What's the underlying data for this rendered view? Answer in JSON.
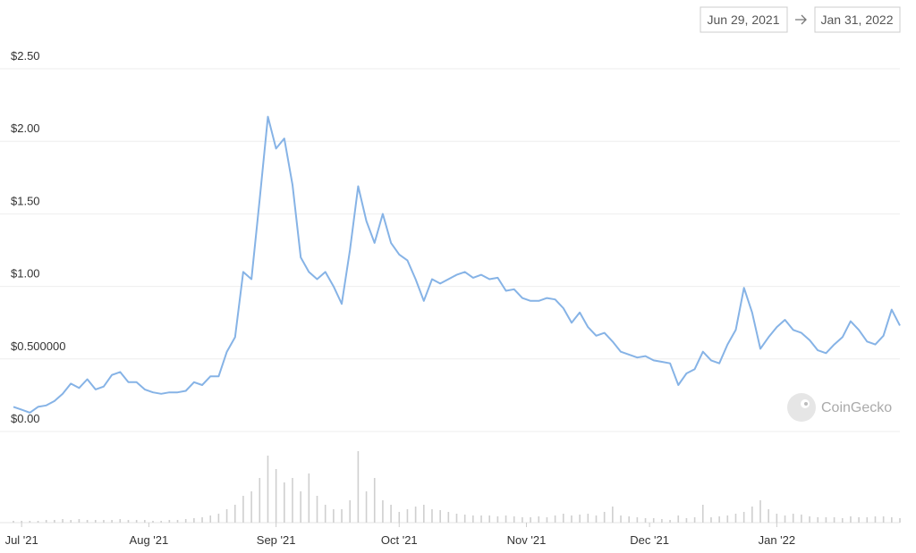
{
  "chart_data": {
    "type": "line",
    "range": {
      "start": "Jun 29, 2021",
      "end": "Jan 31, 2022"
    },
    "watermark": "CoinGecko",
    "color": "#86b3e6",
    "volume_color": "#cfcfcf",
    "grid": true,
    "xlim": [
      0,
      216
    ],
    "xticks": [
      {
        "value": 2,
        "label": "Jul '21"
      },
      {
        "value": 33,
        "label": "Aug '21"
      },
      {
        "value": 64,
        "label": "Sep '21"
      },
      {
        "value": 94,
        "label": "Oct '21"
      },
      {
        "value": 125,
        "label": "Nov '21"
      },
      {
        "value": 155,
        "label": "Dec '21"
      },
      {
        "value": 186,
        "label": "Jan '22"
      }
    ],
    "ylim": [
      0,
      2.5
    ],
    "yticks": [
      {
        "value": 0,
        "label": "$0.00"
      },
      {
        "value": 0.5,
        "label": "$0.500000"
      },
      {
        "value": 1,
        "label": "$1.00"
      },
      {
        "value": 1.5,
        "label": "$1.50"
      },
      {
        "value": 2,
        "label": "$2.00"
      },
      {
        "value": 2.5,
        "label": "$2.50"
      }
    ],
    "x": [
      0,
      2,
      4,
      6,
      8,
      10,
      12,
      14,
      16,
      18,
      20,
      22,
      24,
      26,
      28,
      30,
      32,
      34,
      36,
      38,
      40,
      42,
      44,
      46,
      48,
      50,
      52,
      54,
      56,
      58,
      60,
      62,
      64,
      66,
      68,
      70,
      72,
      74,
      76,
      78,
      80,
      82,
      84,
      86,
      88,
      90,
      92,
      94,
      96,
      98,
      100,
      102,
      104,
      106,
      108,
      110,
      112,
      114,
      116,
      118,
      120,
      122,
      124,
      126,
      128,
      130,
      132,
      134,
      136,
      138,
      140,
      142,
      144,
      146,
      148,
      150,
      152,
      154,
      156,
      158,
      160,
      162,
      164,
      166,
      168,
      170,
      172,
      174,
      176,
      178,
      180,
      182,
      184,
      186,
      188,
      190,
      192,
      194,
      196,
      198,
      200,
      202,
      204,
      206,
      208,
      210,
      212,
      214,
      216
    ],
    "values": [
      0.17,
      0.15,
      0.13,
      0.17,
      0.18,
      0.21,
      0.26,
      0.33,
      0.3,
      0.36,
      0.29,
      0.31,
      0.39,
      0.41,
      0.34,
      0.34,
      0.29,
      0.27,
      0.26,
      0.27,
      0.27,
      0.28,
      0.34,
      0.32,
      0.38,
      0.38,
      0.55,
      0.65,
      1.1,
      1.05,
      1.6,
      2.17,
      1.95,
      2.02,
      1.7,
      1.2,
      1.1,
      1.05,
      1.1,
      1.0,
      0.88,
      1.25,
      1.69,
      1.45,
      1.3,
      1.5,
      1.3,
      1.22,
      1.18,
      1.05,
      0.9,
      1.05,
      1.02,
      1.05,
      1.08,
      1.1,
      1.06,
      1.08,
      1.05,
      1.06,
      0.97,
      0.98,
      0.92,
      0.9,
      0.9,
      0.92,
      0.91,
      0.85,
      0.75,
      0.82,
      0.72,
      0.66,
      0.68,
      0.62,
      0.55,
      0.53,
      0.51,
      0.52,
      0.49,
      0.48,
      0.47,
      0.32,
      0.4,
      0.43,
      0.55,
      0.49,
      0.47,
      0.6,
      0.7,
      0.99,
      0.82,
      0.57,
      0.65,
      0.72,
      0.77,
      0.7,
      0.68,
      0.63,
      0.56,
      0.54,
      0.6,
      0.65,
      0.76,
      0.7,
      0.62,
      0.6,
      0.66,
      0.84,
      0.73
    ],
    "volume": [
      2,
      2,
      2,
      2,
      3,
      3,
      4,
      3,
      4,
      3,
      3,
      3,
      3,
      4,
      3,
      3,
      3,
      2,
      2,
      3,
      3,
      4,
      5,
      6,
      8,
      10,
      15,
      20,
      30,
      35,
      50,
      75,
      60,
      45,
      50,
      35,
      55,
      30,
      20,
      15,
      15,
      25,
      80,
      35,
      50,
      25,
      20,
      12,
      15,
      18,
      20,
      15,
      14,
      12,
      10,
      9,
      8,
      8,
      8,
      7,
      8,
      7,
      6,
      6,
      7,
      6,
      8,
      10,
      8,
      9,
      10,
      8,
      12,
      18,
      8,
      7,
      6,
      5,
      5,
      4,
      3,
      8,
      5,
      6,
      20,
      6,
      7,
      8,
      10,
      12,
      18,
      25,
      15,
      10,
      8,
      10,
      9,
      7,
      6,
      6,
      6,
      5,
      7,
      6,
      6,
      7,
      7,
      6,
      5
    ]
  }
}
